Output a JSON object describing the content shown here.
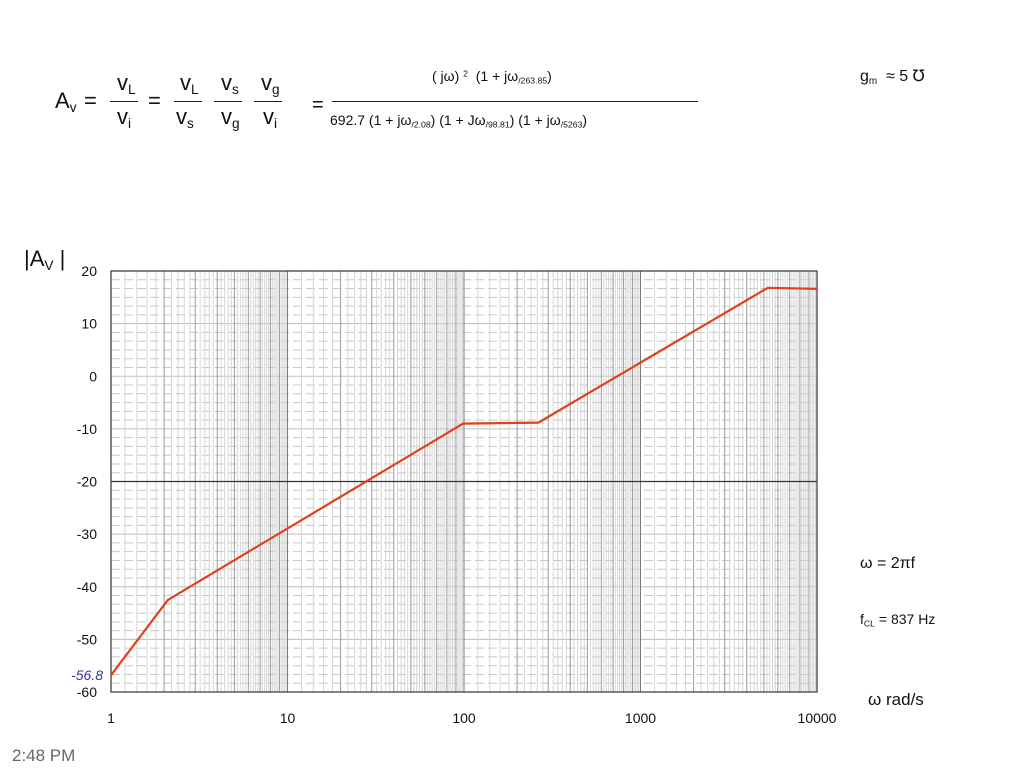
{
  "equation": {
    "lhs": "A",
    "lhs_sub": "v",
    "eq1": "=",
    "eq2": "=",
    "eq3": "=",
    "frac1_num": "v",
    "frac1_num_sub": "L",
    "frac1_den": "v",
    "frac1_den_sub": "i",
    "frac2_num": "v",
    "frac2_num_sub": "L",
    "frac2_den": "v",
    "frac2_den_sub": "s",
    "frac3_num": "v",
    "frac3_num_sub": "s",
    "frac3_den": "v",
    "frac3_den_sub": "g",
    "frac4_num": "v",
    "frac4_num_sub": "g",
    "frac4_den": "v",
    "frac4_den_sub": "i",
    "tf_num_a": "( jω)",
    "tf_num_exp": "2",
    "tf_num_b": "(1 + jω",
    "tf_num_b_sub": "/263.85",
    "tf_num_b_close": ")",
    "tf_den_a": "692.7 (1 + jω",
    "tf_den_a_sub": "/2.08",
    "tf_den_b": ") (1 + Jω",
    "tf_den_b_sub": "/98.81",
    "tf_den_c": ") (1 + jω",
    "tf_den_c_sub": "/5263",
    "tf_den_d": ")"
  },
  "gm_note": {
    "g": "g",
    "g_sub": "m",
    "value": "≈ 5 ℧"
  },
  "omega_def": "ω = 2πf",
  "fcl_note": {
    "f": "f",
    "f_sub": "CL",
    "value": "= 837 Hz"
  },
  "clock": "2:48 PM",
  "chart_data": {
    "type": "line",
    "title": "",
    "ylabel": "|A",
    "ylabel_sub": "V",
    "ylabel_close": "|",
    "xlabel": "ω rad/s",
    "x_scale": "log",
    "xlim": [
      1,
      10000
    ],
    "ylim": [
      -60,
      20
    ],
    "x_ticks": [
      1,
      10,
      100,
      1000,
      10000
    ],
    "x_tick_labels": [
      "1",
      "10",
      "100",
      "1000",
      "10000"
    ],
    "y_ticks": [
      20,
      10,
      0,
      -10,
      -20,
      -30,
      -40,
      -50,
      -60
    ],
    "y_tick_labels": [
      "20",
      "10",
      "0",
      "-10",
      "-20",
      "-30",
      "-40",
      "-50",
      "-60"
    ],
    "grid": true,
    "series": [
      {
        "color": "#e0401a",
        "x": [
          1,
          2.1,
          98.8,
          264,
          5263,
          10000
        ],
        "y": [
          -56.8,
          -42.5,
          -9.0,
          -8.8,
          16.8,
          16.6
        ]
      }
    ],
    "annotation": {
      "text": "-56.8",
      "x": 1,
      "y": -56.8,
      "color": "#3a2fa0"
    }
  }
}
